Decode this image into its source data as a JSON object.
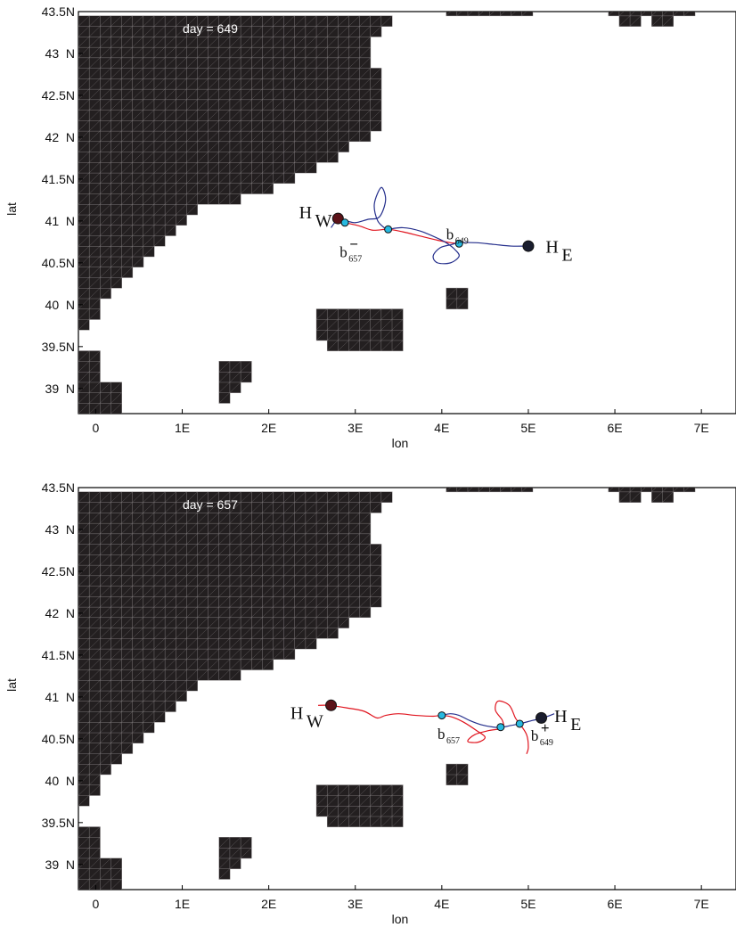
{
  "colors": {
    "land": "#231f20",
    "land_grid": "#8a8587",
    "float_w": "#5b1218",
    "float_e": "#1a1d2e",
    "point_fill": "#27b9e0",
    "track_red": "#e0141e",
    "track_blue": "#252f8c"
  },
  "chart_data": [
    {
      "type": "map",
      "day_label": "day = 649",
      "xlabel": "lon",
      "ylabel": "lat",
      "xlim": [
        -0.2,
        7.4
      ],
      "ylim": [
        38.7,
        43.5
      ],
      "xticks": [
        {
          "v": 0,
          "label": "0"
        },
        {
          "v": 1,
          "label": "1E"
        },
        {
          "v": 2,
          "label": "2E"
        },
        {
          "v": 3,
          "label": "3E"
        },
        {
          "v": 4,
          "label": "4E"
        },
        {
          "v": 5,
          "label": "5E"
        },
        {
          "v": 6,
          "label": "6E"
        },
        {
          "v": 7,
          "label": "7E"
        }
      ],
      "yticks": [
        {
          "v": 43.5,
          "label": "43.5N"
        },
        {
          "v": 43,
          "label": "43  N"
        },
        {
          "v": 42.5,
          "label": "42.5N"
        },
        {
          "v": 42,
          "label": "42  N"
        },
        {
          "v": 41.5,
          "label": "41.5N"
        },
        {
          "v": 41,
          "label": "41  N"
        },
        {
          "v": 40.5,
          "label": "40.5N"
        },
        {
          "v": 40,
          "label": "40  N"
        },
        {
          "v": 39.5,
          "label": "39.5N"
        },
        {
          "v": 39,
          "label": "39  N"
        }
      ],
      "tracks": [
        {
          "color": "track_red",
          "points": [
            [
              2.88,
              40.98
            ],
            [
              3.05,
              40.94
            ],
            [
              3.2,
              40.89
            ],
            [
              3.38,
              40.9
            ],
            [
              3.55,
              40.87
            ],
            [
              3.75,
              40.82
            ],
            [
              3.95,
              40.77
            ],
            [
              4.1,
              40.74
            ],
            [
              4.2,
              40.73
            ]
          ]
        },
        {
          "color": "track_blue",
          "points": [
            [
              2.72,
              40.92
            ],
            [
              2.8,
              41.02
            ],
            [
              2.9,
              41.0
            ],
            [
              3.0,
              40.98
            ],
            [
              3.15,
              41.02
            ],
            [
              3.28,
              41.05
            ],
            [
              3.35,
              41.25
            ],
            [
              3.3,
              41.4
            ],
            [
              3.22,
              41.2
            ],
            [
              3.26,
              41.0
            ],
            [
              3.36,
              40.9
            ]
          ]
        },
        {
          "color": "track_blue",
          "points": [
            [
              3.38,
              40.9
            ],
            [
              3.55,
              40.92
            ],
            [
              3.75,
              40.88
            ],
            [
              3.98,
              40.78
            ],
            [
              4.08,
              40.72
            ],
            [
              4.15,
              40.66
            ],
            [
              4.2,
              40.58
            ],
            [
              4.1,
              40.5
            ],
            [
              3.95,
              40.5
            ],
            [
              3.9,
              40.58
            ],
            [
              3.98,
              40.68
            ],
            [
              4.12,
              40.72
            ],
            [
              4.2,
              40.74
            ],
            [
              4.4,
              40.74
            ],
            [
              4.6,
              40.72
            ],
            [
              4.8,
              40.7
            ],
            [
              4.98,
              40.7
            ]
          ]
        }
      ],
      "points": [
        {
          "lon": 2.8,
          "lat": 41.03,
          "kind": "float_w"
        },
        {
          "lon": 5.0,
          "lat": 40.7,
          "kind": "float_e"
        },
        {
          "lon": 2.88,
          "lat": 40.98,
          "kind": "point"
        },
        {
          "lon": 3.38,
          "lat": 40.9,
          "kind": "point"
        },
        {
          "lon": 4.2,
          "lat": 40.73,
          "kind": "point"
        }
      ],
      "annotations": [
        {
          "kind": "H",
          "base": "H",
          "sub": "W",
          "lon": 2.35,
          "lat": 41.03
        },
        {
          "kind": "H",
          "base": "H",
          "sub": "E",
          "lon": 5.2,
          "lat": 40.62
        },
        {
          "kind": "b",
          "base": "b",
          "sub": "657",
          "sup": "−",
          "lon": 2.82,
          "lat": 40.57
        },
        {
          "kind": "b",
          "base": "b",
          "sub": "649",
          "lon": 4.05,
          "lat": 40.78
        }
      ]
    },
    {
      "type": "map",
      "day_label": "day = 657",
      "xlabel": "lon",
      "ylabel": "lat",
      "xlim": [
        -0.2,
        7.4
      ],
      "ylim": [
        38.7,
        43.5
      ],
      "xticks": [
        {
          "v": 0,
          "label": "0"
        },
        {
          "v": 1,
          "label": "1E"
        },
        {
          "v": 2,
          "label": "2E"
        },
        {
          "v": 3,
          "label": "3E"
        },
        {
          "v": 4,
          "label": "4E"
        },
        {
          "v": 5,
          "label": "5E"
        },
        {
          "v": 6,
          "label": "6E"
        },
        {
          "v": 7,
          "label": "7E"
        }
      ],
      "yticks": [
        {
          "v": 43.5,
          "label": "43.5N"
        },
        {
          "v": 43,
          "label": "43  N"
        },
        {
          "v": 42.5,
          "label": "42.5N"
        },
        {
          "v": 42,
          "label": "42  N"
        },
        {
          "v": 41.5,
          "label": "41.5N"
        },
        {
          "v": 41,
          "label": "41  N"
        },
        {
          "v": 40.5,
          "label": "40.5N"
        },
        {
          "v": 40,
          "label": "40  N"
        },
        {
          "v": 39.5,
          "label": "39.5N"
        },
        {
          "v": 39,
          "label": "39  N"
        }
      ],
      "tracks": [
        {
          "color": "track_red",
          "points": [
            [
              2.57,
              40.9
            ],
            [
              2.7,
              40.9
            ],
            [
              2.9,
              40.87
            ],
            [
              3.1,
              40.83
            ],
            [
              3.25,
              40.75
            ],
            [
              3.35,
              40.78
            ],
            [
              3.5,
              40.8
            ],
            [
              3.7,
              40.78
            ],
            [
              3.9,
              40.77
            ],
            [
              4.0,
              40.78
            ],
            [
              4.12,
              40.76
            ],
            [
              4.25,
              40.7
            ],
            [
              4.4,
              40.6
            ],
            [
              4.5,
              40.52
            ],
            [
              4.42,
              40.46
            ],
            [
              4.3,
              40.47
            ],
            [
              4.38,
              40.55
            ],
            [
              4.55,
              40.6
            ],
            [
              4.7,
              40.63
            ],
            [
              4.7,
              40.72
            ],
            [
              4.62,
              40.84
            ],
            [
              4.65,
              40.95
            ],
            [
              4.78,
              40.9
            ],
            [
              4.85,
              40.75
            ],
            [
              4.9,
              40.68
            ],
            [
              4.98,
              40.55
            ],
            [
              5.0,
              40.4
            ],
            [
              4.98,
              40.32
            ]
          ]
        },
        {
          "color": "track_blue",
          "points": [
            [
              4.0,
              40.78
            ],
            [
              4.1,
              40.8
            ],
            [
              4.2,
              40.78
            ],
            [
              4.32,
              40.72
            ],
            [
              4.45,
              40.67
            ],
            [
              4.6,
              40.64
            ],
            [
              4.7,
              40.64
            ],
            [
              4.8,
              40.66
            ],
            [
              4.9,
              40.68
            ],
            [
              5.05,
              40.72
            ],
            [
              5.17,
              40.75
            ],
            [
              5.3,
              40.8
            ]
          ]
        }
      ],
      "points": [
        {
          "lon": 2.72,
          "lat": 40.9,
          "kind": "float_w"
        },
        {
          "lon": 5.15,
          "lat": 40.75,
          "kind": "float_e"
        },
        {
          "lon": 4.0,
          "lat": 40.78,
          "kind": "point"
        },
        {
          "lon": 4.68,
          "lat": 40.64,
          "kind": "point"
        },
        {
          "lon": 4.9,
          "lat": 40.68,
          "kind": "point"
        }
      ],
      "annotations": [
        {
          "kind": "H",
          "base": "H",
          "sub": "W",
          "lon": 2.25,
          "lat": 40.74
        },
        {
          "kind": "H",
          "base": "H",
          "sub": "E",
          "lon": 5.3,
          "lat": 40.7
        },
        {
          "kind": "b",
          "base": "b",
          "sub": "657",
          "lon": 3.95,
          "lat": 40.5
        },
        {
          "kind": "b",
          "base": "b",
          "sub": "649",
          "sup": "+",
          "lon": 5.03,
          "lat": 40.48
        }
      ]
    }
  ]
}
